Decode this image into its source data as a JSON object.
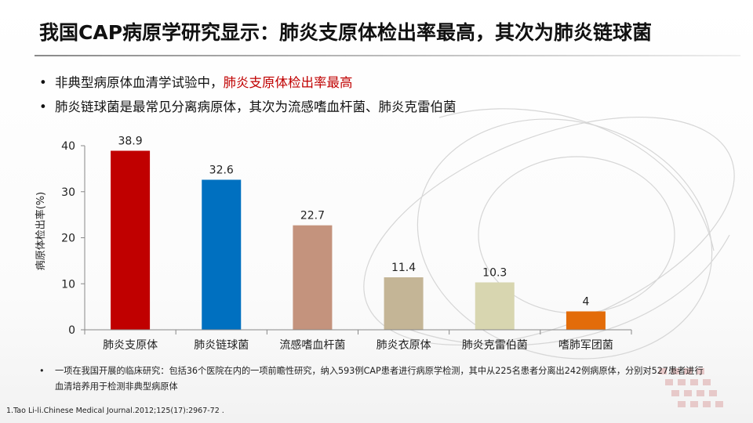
{
  "title": "我国CAP病原学研究显示：肺炎支原体检出率最高，其次为肺炎链球菌",
  "bullets": [
    {
      "before": "非典型病原体血清学试验中，",
      "highlight": "肺炎支原体检出率最高"
    },
    {
      "text": "肺炎链球菌是最常见分离病原体，其次为流感嗜血杆菌、肺炎克雷伯菌"
    }
  ],
  "note": "一项在我国开展的临床研究：包括36个医院在内的一项前瞻性研究，纳入593例CAP患者进行病原学检测，其中从225名患者分离出242例病原体，分别对527患者进行血清培养用于检测非典型病原体",
  "reference": "1.Tao Li-li.Chinese Medical Journal.2012;125(17):2967-72 .",
  "colors": {
    "highlight": "#c00000"
  },
  "chart_data": {
    "type": "bar",
    "title": "",
    "xlabel": "",
    "ylabel": "病原体检出率(%)",
    "ylim": [
      0,
      40
    ],
    "yticks": [
      0,
      10,
      20,
      30,
      40
    ],
    "grid": false,
    "categories": [
      "肺炎支原体",
      "肺炎链球菌",
      "流感嗜血杆菌",
      "肺炎衣原体",
      "肺炎克雷伯菌",
      "嗜肺军团菌"
    ],
    "values": [
      38.9,
      32.6,
      22.7,
      11.4,
      10.3,
      4
    ],
    "value_labels": [
      "38.9",
      "32.6",
      "22.7",
      "11.4",
      "10.3",
      "4"
    ],
    "colors": [
      "#c00000",
      "#0070c0",
      "#c4937d",
      "#c4b596",
      "#d8d6b0",
      "#e36c09"
    ]
  }
}
